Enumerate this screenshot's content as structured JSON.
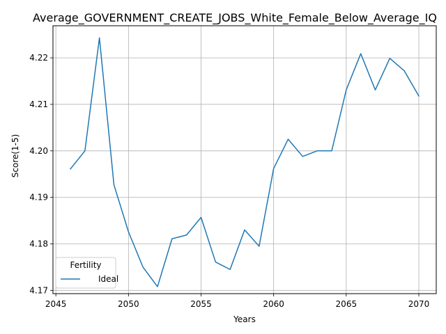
{
  "chart_data": {
    "type": "line",
    "title": "Average_GOVERNMENT_CREATE_JOBS_White_Female_Below_Average_IQ",
    "xlabel": "Years",
    "ylabel": "Score(1-5)",
    "xlim": [
      2044.8,
      2071.2
    ],
    "ylim": [
      4.1693,
      4.2269
    ],
    "xticks": [
      2045,
      2050,
      2055,
      2060,
      2065,
      2070
    ],
    "yticks": [
      4.17,
      4.18,
      4.19,
      4.2,
      4.21,
      4.22
    ],
    "ytick_labels": [
      "4.17",
      "4.18",
      "4.19",
      "4.20",
      "4.21",
      "4.22"
    ],
    "grid": true,
    "legend": {
      "title": "Fertility",
      "position": "lower-left"
    },
    "series": [
      {
        "name": "Ideal",
        "color": "#1f77b4",
        "x": [
          2046,
          2047,
          2048,
          2049,
          2050,
          2051,
          2052,
          2053,
          2054,
          2055,
          2056,
          2057,
          2058,
          2059,
          2060,
          2061,
          2062,
          2063,
          2064,
          2065,
          2066,
          2067,
          2068,
          2069,
          2070
        ],
        "y": [
          4.1961,
          4.2,
          4.2243,
          4.1927,
          4.1826,
          4.175,
          4.1708,
          4.1811,
          4.1819,
          4.1857,
          4.1761,
          4.1745,
          4.183,
          4.1795,
          4.1962,
          4.2025,
          4.1988,
          4.2,
          4.2,
          4.2131,
          4.2209,
          4.2131,
          4.2199,
          4.2172,
          4.2118
        ]
      }
    ]
  }
}
